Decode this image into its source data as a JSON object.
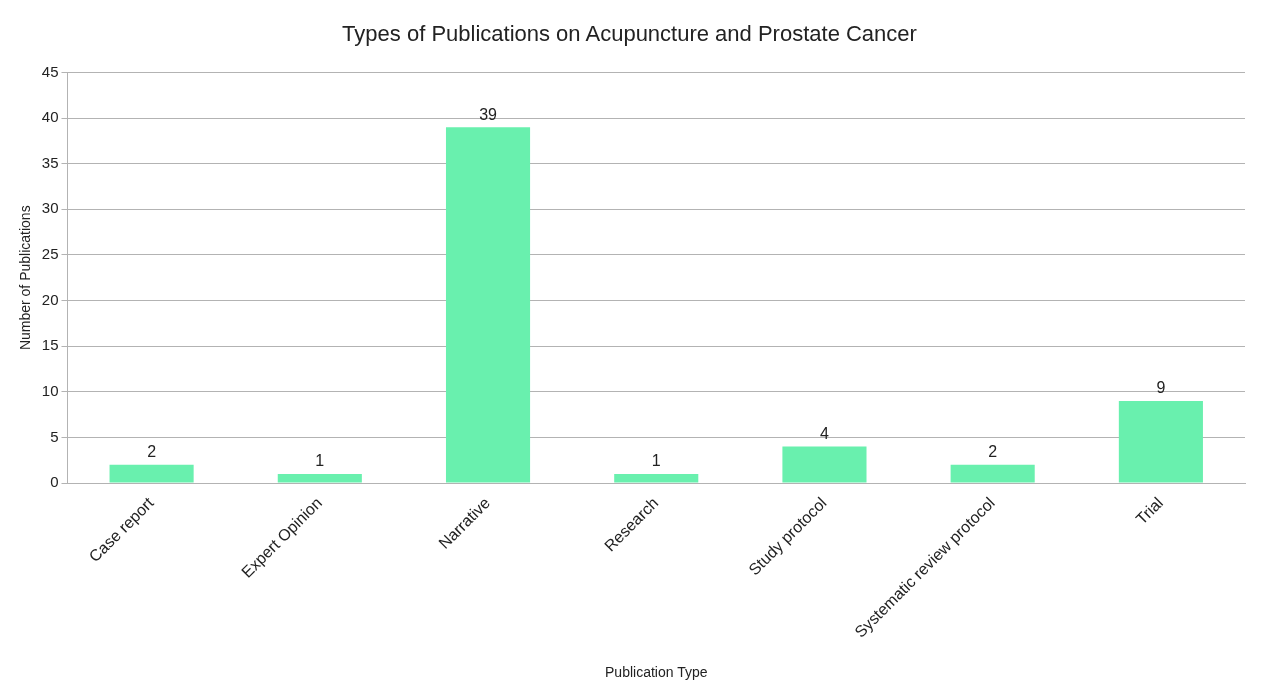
{
  "chart_data": {
    "type": "bar",
    "title": "Types of Publications on Acupuncture and Prostate Cancer",
    "xlabel": "Publication Type",
    "ylabel": "Number of Publications",
    "categories": [
      "Case report",
      "Expert Opinion",
      "Narrative",
      "Research",
      "Study protocol",
      "Systematic review protocol",
      "Trial"
    ],
    "values": [
      2,
      1,
      39,
      1,
      4,
      2,
      9
    ],
    "color": "#69f0ae",
    "ylim": [
      0,
      45
    ],
    "yticks": [
      0,
      5,
      10,
      15,
      20,
      25,
      30,
      35,
      40,
      45
    ],
    "grid": "y",
    "data_labels": true,
    "legend": false
  }
}
